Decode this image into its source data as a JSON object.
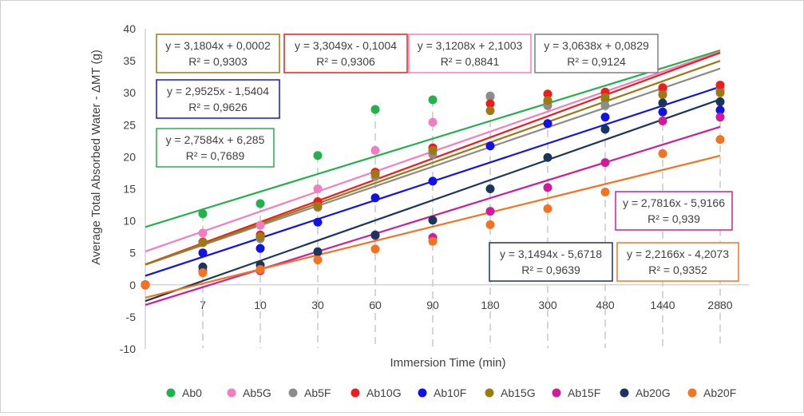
{
  "chart_data": {
    "type": "scatter",
    "ylabel": "Average Total Absorbed Water - ΔMT (g)",
    "xlabel": "Immersion Time (min)",
    "categories": [
      "0",
      "7",
      "10",
      "30",
      "60",
      "90",
      "180",
      "300",
      "480",
      "1440",
      "2880"
    ],
    "ylim": [
      -10,
      40
    ],
    "yticks": [
      -10,
      -5,
      0,
      5,
      10,
      15,
      20,
      25,
      30,
      35,
      40
    ],
    "grid": false,
    "drop_lines": true,
    "legend_position": "bottom",
    "series": [
      {
        "name": "Ab0",
        "color": "#22b14c",
        "values": [
          0,
          11.1,
          12.7,
          20.2,
          27.4,
          28.9,
          29.4,
          28.5,
          29.0,
          30.5,
          30.5
        ],
        "trendline": {
          "slope": 2.7584,
          "intercept": 6.285,
          "r2": "R² = 0,7689",
          "eq": "y = 2,7584x + 6,285"
        }
      },
      {
        "name": "Ab5G",
        "color": "#f27ec0",
        "values": [
          0,
          8.1,
          9.3,
          15.0,
          21.0,
          25.4,
          29.5,
          28.0,
          29.5,
          30.2,
          30.3
        ],
        "trendline": {
          "slope": 3.1208,
          "intercept": 2.1003,
          "r2": "R² = 0,8841",
          "eq": "y = 3,1208x + 2,1003"
        }
      },
      {
        "name": "Ab5F",
        "color": "#8c8c8c",
        "values": [
          0,
          6.6,
          7.2,
          12.1,
          16.9,
          20.4,
          29.5,
          28.0,
          28.0,
          29.7,
          30.2
        ],
        "trendline": {
          "slope": 3.0638,
          "intercept": 0.0829,
          "r2": "R² = 0,9124",
          "eq": "y = 3,0638x + 0,0829"
        }
      },
      {
        "name": "Ab10G",
        "color": "#ee1c1c",
        "values": [
          0,
          6.7,
          7.8,
          13.0,
          17.6,
          21.4,
          28.3,
          29.8,
          30.1,
          30.8,
          31.2
        ],
        "trendline": {
          "slope": 3.3049,
          "intercept": -0.1004,
          "r2": "R² = 0,9306",
          "eq": "y = 3,3049x - 0,1004"
        }
      },
      {
        "name": "Ab10F",
        "color": "#1212e6",
        "values": [
          0,
          5.0,
          5.7,
          9.8,
          13.6,
          16.2,
          21.7,
          25.2,
          26.2,
          27.0,
          27.3
        ],
        "trendline": {
          "slope": 2.9525,
          "intercept": -1.5404,
          "r2": "R² = 0,9626",
          "eq": "y = 2,9525x - 1,5404"
        }
      },
      {
        "name": "Ab15G",
        "color": "#9b7a12",
        "values": [
          0,
          6.6,
          7.5,
          12.3,
          17.3,
          21.0,
          27.2,
          28.8,
          29.3,
          29.7,
          30.0
        ],
        "trendline": {
          "slope": 3.1804,
          "intercept": 0.0002,
          "r2": "R² = 0,9303",
          "eq": "y = 3,1804x + 0,0002"
        }
      },
      {
        "name": "Ab15F",
        "color": "#cc1e9c",
        "values": [
          0,
          2.2,
          2.2,
          5.1,
          7.7,
          7.4,
          11.5,
          15.2,
          19.1,
          25.6,
          26.2
        ],
        "trendline": {
          "slope": 2.7816,
          "intercept": -5.9166,
          "r2": "R² = 0,939",
          "eq": "y = 2,7816x - 5,9166"
        }
      },
      {
        "name": "Ab20G",
        "color": "#1b365d",
        "values": [
          0,
          2.8,
          3.1,
          5.2,
          7.8,
          10.1,
          15.0,
          19.9,
          24.3,
          28.4,
          28.6
        ],
        "trendline": {
          "slope": 3.1494,
          "intercept": -5.6718,
          "r2": "R² = 0,9639",
          "eq": "y = 3,1494x - 5,6718"
        }
      },
      {
        "name": "Ab20F",
        "color": "#f47320",
        "values": [
          0,
          1.9,
          2.4,
          3.9,
          5.6,
          6.8,
          9.4,
          11.9,
          14.5,
          20.5,
          22.7
        ],
        "trendline": {
          "slope": 2.2166,
          "intercept": -4.2073,
          "r2": "R² = 0,9352",
          "eq": "y = 2,2166x - 4,2073"
        }
      }
    ],
    "annotations": [
      {
        "series": "Ab15G",
        "line1": "y = 3,1804x + 0,0002",
        "line2": "R² = 0,9303",
        "color": "#9b7a12"
      },
      {
        "series": "Ab10G",
        "line1": "y = 3,3049x - 0,1004",
        "line2": "R² = 0,9306",
        "color": "#ee1c1c"
      },
      {
        "series": "Ab5G",
        "line1": "y = 3,1208x + 2,1003",
        "line2": "R² = 0,8841",
        "color": "#f27ec0"
      },
      {
        "series": "Ab5F",
        "line1": "y = 3,0638x + 0,0829",
        "line2": "R² = 0,9124",
        "color": "#7f7f7f"
      },
      {
        "series": "Ab10F",
        "line1": "y = 2,9525x - 1,5404",
        "line2": "R² = 0,9626",
        "color": "#1212e6"
      },
      {
        "series": "Ab0",
        "line1": "y = 2,7584x + 6,285",
        "line2": "R² = 0,7689",
        "color": "#22b14c"
      },
      {
        "series": "Ab15F",
        "line1": "y = 2,7816x - 5,9166",
        "line2": "R² = 0,939",
        "color": "#cc1e9c"
      },
      {
        "series": "Ab20G",
        "line1": "y = 3,1494x - 5,6718",
        "line2": "R² = 0,9639",
        "color": "#1b365d"
      },
      {
        "series": "Ab20F",
        "line1": "y = 2,2166x - 4,2073",
        "line2": "R² = 0,9352",
        "color": "#f47320"
      }
    ]
  }
}
